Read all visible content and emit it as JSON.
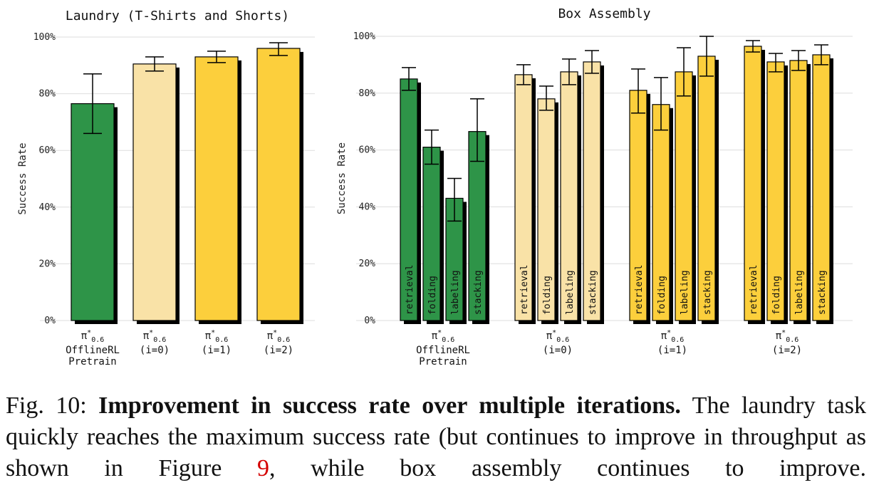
{
  "colors": {
    "offline": "#2e9448",
    "iter0": "#f9e2a7",
    "iter1": "#fccf3c",
    "iter2": "#fccf3c",
    "shadow": "#000000",
    "grid": "#dddddd",
    "ref": "#d40000"
  },
  "chart_data": [
    {
      "type": "bar",
      "title": "Laundry (T-Shirts and Shorts)",
      "ylabel": "Success Rate",
      "ylim": [
        0,
        100
      ],
      "yticks": [
        "0%",
        "20%",
        "40%",
        "60%",
        "80%",
        "100%"
      ],
      "grid": true,
      "groups": [
        {
          "key": "offline",
          "label_sym": "π",
          "label_sup": "*",
          "label_sub": "0.6",
          "label_lines": [
            "OfflineRL",
            "Pretrain"
          ]
        },
        {
          "key": "iter0",
          "label_sym": "π",
          "label_sup": "*",
          "label_sub": "0.6",
          "label_lines": [
            "(i=0)"
          ]
        },
        {
          "key": "iter1",
          "label_sym": "π",
          "label_sup": "*",
          "label_sub": "0.6",
          "label_lines": [
            "(i=1)"
          ]
        },
        {
          "key": "iter2",
          "label_sym": "π",
          "label_sup": "*",
          "label_sub": "0.6",
          "label_lines": [
            "(i=2)"
          ]
        }
      ],
      "series": [
        {
          "name": "Laundry",
          "values": [
            76.5,
            90.5,
            93,
            96
          ],
          "err_low": [
            66,
            88,
            91,
            93.5
          ],
          "err_high": [
            87,
            93,
            95,
            98
          ]
        }
      ]
    },
    {
      "type": "bar",
      "title": "Box Assembly",
      "ylabel": "Success Rate",
      "ylim": [
        0,
        100
      ],
      "yticks": [
        "0%",
        "20%",
        "40%",
        "60%",
        "80%",
        "100%"
      ],
      "grid": true,
      "bar_labels": [
        "retrieval",
        "folding",
        "labeling",
        "stacking"
      ],
      "groups": [
        {
          "key": "offline",
          "label_sym": "π",
          "label_sup": "*",
          "label_sub": "0.6",
          "label_lines": [
            "OfflineRL",
            "Pretrain"
          ],
          "values": [
            85,
            61,
            43,
            66.5
          ],
          "err_low": [
            81,
            55,
            35,
            56
          ],
          "err_high": [
            89,
            67,
            50,
            78
          ]
        },
        {
          "key": "iter0",
          "label_sym": "π",
          "label_sup": "*",
          "label_sub": "0.6",
          "label_lines": [
            "(i=0)"
          ],
          "values": [
            86.5,
            78,
            87.5,
            91
          ],
          "err_low": [
            83,
            74,
            83,
            87
          ],
          "err_high": [
            90,
            82.5,
            92,
            95
          ]
        },
        {
          "key": "iter1",
          "label_sym": "π",
          "label_sup": "*",
          "label_sub": "0.6",
          "label_lines": [
            "(i=1)"
          ],
          "values": [
            81,
            76,
            87.5,
            93
          ],
          "err_low": [
            73,
            67,
            79,
            86
          ],
          "err_high": [
            88.5,
            85.5,
            96,
            100
          ]
        },
        {
          "key": "iter2",
          "label_sym": "π",
          "label_sup": "*",
          "label_sub": "0.6",
          "label_lines": [
            "(i=2)"
          ],
          "values": [
            96.5,
            91,
            91.5,
            93.5
          ],
          "err_low": [
            94.5,
            87.5,
            88,
            90
          ],
          "err_high": [
            98.5,
            94,
            95,
            97
          ]
        }
      ]
    }
  ],
  "caption": {
    "prefix": "Fig. 10: ",
    "bold": "Improvement in success rate over multiple iterations.",
    "text1": " The laundry task quickly reaches the maximum success rate (but continues to improve in throughput as shown in Figure ",
    "ref": "9",
    "text2": ", while box assembly continues to improve."
  }
}
